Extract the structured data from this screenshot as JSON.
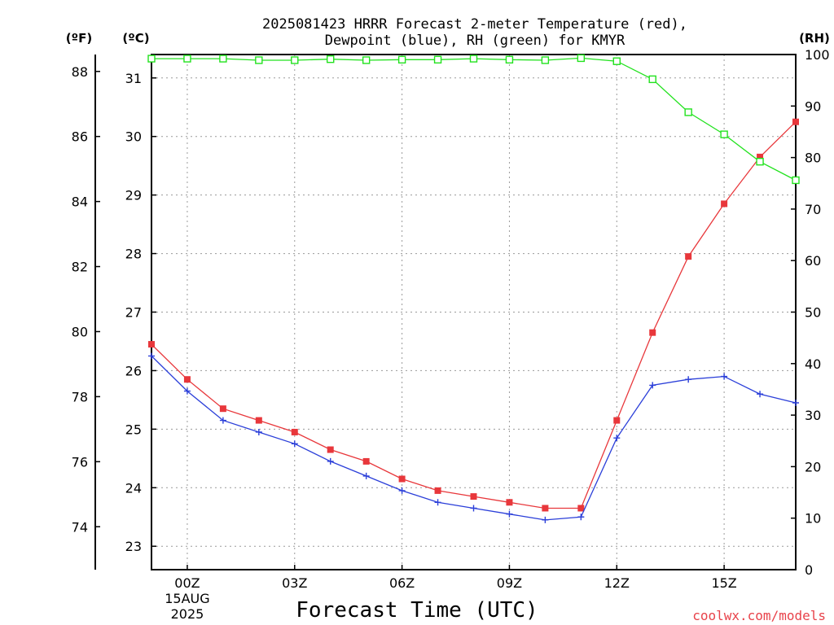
{
  "title_line1": "2025081423 HRRR Forecast 2-meter Temperature (red),",
  "title_line2": "Dewpoint (blue), RH (green) for KMYR",
  "unit_f": "(ºF)",
  "unit_c": "(ºC)",
  "unit_rh": "(RH)",
  "credit": "coolwx.com/models",
  "colors": {
    "temperature": "#e8373b",
    "dewpoint": "#2b3fd9",
    "rh": "#22e21e"
  },
  "chart_data": {
    "type": "line",
    "title": "2025081423 HRRR Forecast 2-meter Temperature (red), Dewpoint (blue), RH (green) for KMYR",
    "xlabel": "Forecast Time (UTC)",
    "x": [
      "23Z",
      "00Z",
      "01Z",
      "02Z",
      "03Z",
      "04Z",
      "05Z",
      "06Z",
      "07Z",
      "08Z",
      "09Z",
      "10Z",
      "11Z",
      "12Z",
      "13Z",
      "14Z",
      "15Z",
      "16Z",
      "17Z"
    ],
    "xticks": [
      "00Z",
      "03Z",
      "06Z",
      "09Z",
      "12Z",
      "15Z"
    ],
    "xtick_date": [
      "15AUG",
      "2025"
    ],
    "ylim_c": [
      22.6,
      31.4
    ],
    "yticks_c": [
      23,
      24,
      25,
      26,
      27,
      28,
      29,
      30,
      31
    ],
    "yticks_f": [
      74,
      76,
      78,
      80,
      82,
      84,
      86,
      88
    ],
    "ylim_rh": [
      0,
      100
    ],
    "yticks_rh": [
      0,
      10,
      20,
      30,
      40,
      50,
      60,
      70,
      80,
      90,
      100
    ],
    "grid": true,
    "series": [
      {
        "key": "temperature",
        "axis": "c",
        "marker": "square",
        "values": [
          26.45,
          25.85,
          25.35,
          25.15,
          24.95,
          24.65,
          24.45,
          24.15,
          23.95,
          23.85,
          23.75,
          23.65,
          23.65,
          25.15,
          26.65,
          27.95,
          28.85,
          29.65,
          30.25
        ]
      },
      {
        "key": "dewpoint",
        "axis": "c",
        "marker": "plus",
        "values": [
          26.25,
          25.65,
          25.15,
          24.95,
          24.75,
          24.45,
          24.2,
          23.95,
          23.75,
          23.65,
          23.55,
          23.45,
          23.5,
          24.85,
          25.75,
          25.85,
          25.9,
          25.6,
          25.45
        ]
      },
      {
        "key": "rh",
        "axis": "rh",
        "marker": "open-square",
        "values": [
          99.2,
          99.2,
          99.2,
          98.9,
          98.9,
          99.1,
          98.9,
          99.0,
          99.0,
          99.2,
          99.0,
          98.9,
          99.3,
          98.7,
          95.2,
          88.8,
          84.5,
          79.2,
          75.6
        ]
      }
    ]
  }
}
